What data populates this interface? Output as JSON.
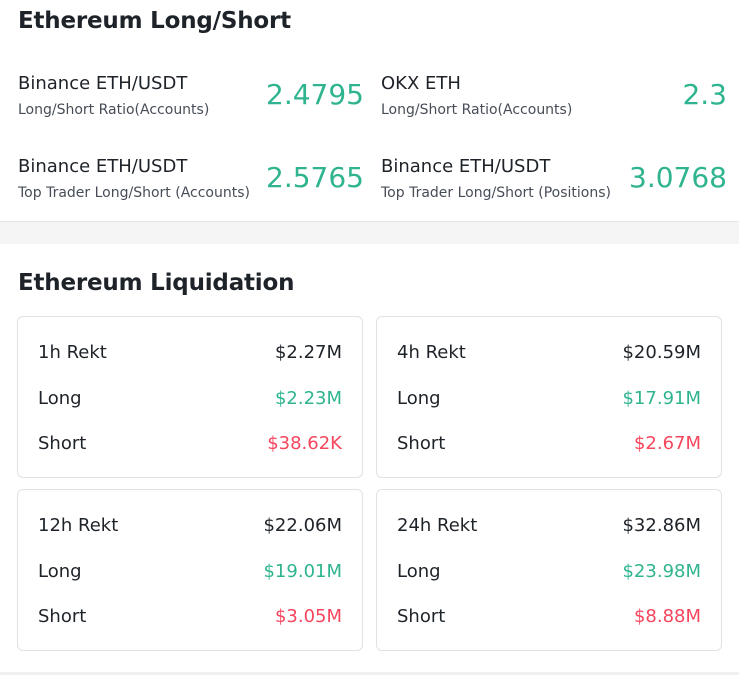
{
  "long_short": {
    "title": "Ethereum Long/Short",
    "ratios": [
      {
        "name": "Binance ETH/USDT",
        "sub": "Long/Short Ratio(Accounts)",
        "value": "2.4795"
      },
      {
        "name": "OKX ETH",
        "sub": "Long/Short Ratio(Accounts)",
        "value": "2.3"
      },
      {
        "name": "Binance ETH/USDT",
        "sub": "Top Trader Long/Short (Accounts)",
        "value": "2.5765"
      },
      {
        "name": "Binance ETH/USDT",
        "sub": "Top Trader Long/Short (Positions)",
        "value": "3.0768"
      }
    ]
  },
  "liquidation": {
    "title": "Ethereum Liquidation",
    "cards": [
      {
        "period": "1h Rekt",
        "total": "$2.27M",
        "long_label": "Long",
        "long": "$2.23M",
        "short_label": "Short",
        "short": "$38.62K"
      },
      {
        "period": "4h Rekt",
        "total": "$20.59M",
        "long_label": "Long",
        "long": "$17.91M",
        "short_label": "Short",
        "short": "$2.67M"
      },
      {
        "period": "12h Rekt",
        "total": "$22.06M",
        "long_label": "Long",
        "long": "$19.01M",
        "short_label": "Short",
        "short": "$3.05M"
      },
      {
        "period": "24h Rekt",
        "total": "$32.86M",
        "long_label": "Long",
        "long": "$23.98M",
        "short_label": "Short",
        "short": "$8.88M"
      }
    ]
  },
  "colors": {
    "positive": "#2fb48f",
    "negative": "#f6465d",
    "text": "#1e2329"
  }
}
